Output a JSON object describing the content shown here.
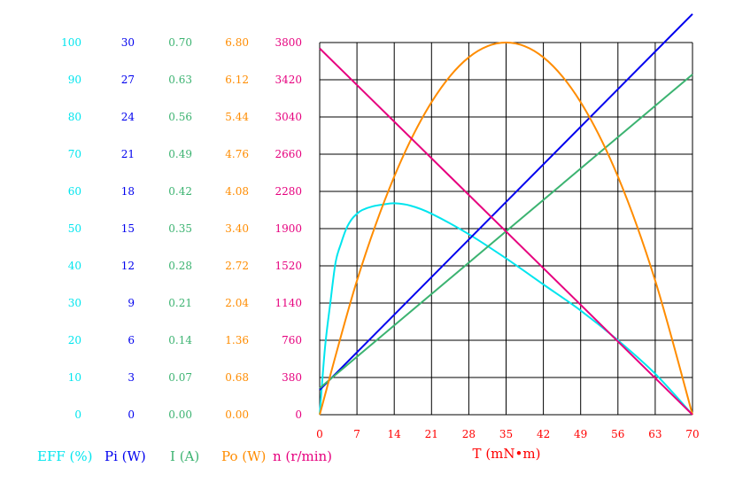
{
  "chart_data": {
    "type": "line",
    "x_axis": {
      "label": "T (mN•m)",
      "ticks": [
        "0",
        "7",
        "14",
        "21",
        "28",
        "35",
        "42",
        "49",
        "56",
        "63",
        "70"
      ],
      "range": [
        0,
        70
      ],
      "color": "#ff0000"
    },
    "y_axes": [
      {
        "key": "eff",
        "legend": "EFF (%)",
        "color": "#00e5ee",
        "range": [
          0,
          100
        ],
        "ticks": [
          "100",
          "90",
          "80",
          "70",
          "60",
          "50",
          "40",
          "30",
          "20",
          "10",
          "0"
        ]
      },
      {
        "key": "pi",
        "legend": "Pi (W)",
        "color": "#0000ee",
        "range": [
          0,
          30
        ],
        "ticks": [
          "30",
          "27",
          "24",
          "21",
          "18",
          "15",
          "12",
          "9",
          "6",
          "3",
          "0"
        ]
      },
      {
        "key": "i",
        "legend": "I (A)",
        "color": "#3cb371",
        "range": [
          0,
          0.7
        ],
        "ticks": [
          "0.70",
          "0.63",
          "0.56",
          "0.49",
          "0.42",
          "0.35",
          "0.28",
          "0.21",
          "0.14",
          "0.07",
          "0.00"
        ]
      },
      {
        "key": "po",
        "legend": "Po (W)",
        "color": "#ff8c00",
        "range": [
          0,
          6.8
        ],
        "ticks": [
          "6.80",
          "6.12",
          "5.44",
          "4.76",
          "4.08",
          "3.40",
          "2.72",
          "2.04",
          "1.36",
          "0.68",
          "0.00"
        ]
      },
      {
        "key": "n",
        "legend": "n (r/min)",
        "color": "#e6007e",
        "range": [
          0,
          3800
        ],
        "ticks": [
          "3800",
          "3420",
          "3040",
          "2660",
          "2280",
          "1900",
          "1520",
          "1140",
          "760",
          "380",
          "0"
        ]
      }
    ],
    "grid": true,
    "legend_position": "bottom-left",
    "series": [
      {
        "key": "eff",
        "color": "#00e5ee",
        "x": [
          0,
          1,
          2,
          3,
          4,
          5,
          6,
          7,
          8,
          10,
          12,
          14,
          17,
          21,
          28,
          35,
          42,
          49,
          56,
          63,
          70
        ],
        "y": [
          0,
          18,
          30,
          41,
          46,
          50,
          52.5,
          54,
          55,
          56,
          56.5,
          56.8,
          56.2,
          54,
          48.5,
          42,
          35,
          28,
          20,
          11,
          0
        ]
      },
      {
        "key": "pi",
        "color": "#0000ee",
        "x": [
          0,
          70
        ],
        "y": [
          2.0,
          32.3
        ]
      },
      {
        "key": "i",
        "color": "#3cb371",
        "x": [
          0,
          70
        ],
        "y": [
          0.05,
          0.64
        ]
      },
      {
        "key": "po",
        "color": "#ff8c00",
        "x": [
          0,
          7,
          14,
          21,
          28,
          35,
          42,
          49,
          56,
          63,
          70
        ],
        "y": [
          0,
          2.45,
          4.35,
          5.71,
          6.53,
          6.8,
          6.53,
          5.71,
          4.35,
          2.45,
          0
        ]
      },
      {
        "key": "n",
        "color": "#e6007e",
        "x": [
          0,
          70
        ],
        "y": [
          3740,
          0
        ]
      }
    ]
  }
}
